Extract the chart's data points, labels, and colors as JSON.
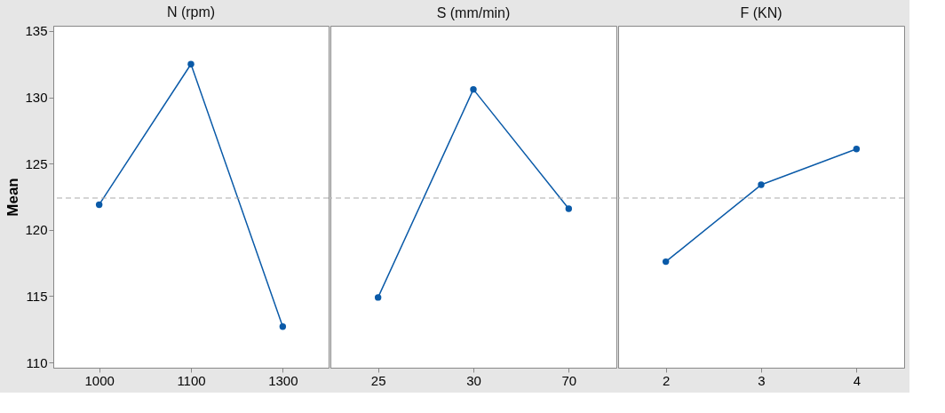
{
  "chart_data": [
    {
      "type": "line",
      "title": "N (rpm)",
      "ylabel": "Mean",
      "categories": [
        "1000",
        "1100",
        "1300"
      ],
      "series": [
        {
          "color": "#0a5aa8",
          "values": [
            121.9,
            132.5,
            112.7
          ]
        }
      ],
      "ylim": [
        109.6,
        135.4
      ],
      "yticks": [
        110,
        115,
        120,
        125,
        130,
        135
      ],
      "ref_lines": [
        {
          "axis": "y",
          "value": 122.4,
          "color": "#aaaaaa",
          "line_style": "dashed"
        }
      ],
      "marker": "circle",
      "line_style": "solid",
      "grid": false
    },
    {
      "type": "line",
      "title": "S (mm/min)",
      "categories": [
        "25",
        "30",
        "70"
      ],
      "series": [
        {
          "color": "#0a5aa8",
          "values": [
            114.9,
            130.6,
            121.6
          ]
        }
      ],
      "ylim": [
        109.6,
        135.4
      ],
      "yticks": [
        110,
        115,
        120,
        125,
        130,
        135
      ],
      "tick_labels": "x",
      "ref_lines": [
        {
          "axis": "y",
          "value": 122.4,
          "color": "#aaaaaa",
          "line_style": "dashed"
        }
      ],
      "marker": "circle",
      "line_style": "solid",
      "grid": false
    },
    {
      "type": "line",
      "title": "F (KN)",
      "categories": [
        "2",
        "3",
        "4"
      ],
      "series": [
        {
          "color": "#0a5aa8",
          "values": [
            117.6,
            123.4,
            126.1
          ]
        }
      ],
      "ylim": [
        109.6,
        135.4
      ],
      "yticks": [
        110,
        115,
        120,
        125,
        130,
        135
      ],
      "tick_labels": "x",
      "ref_lines": [
        {
          "axis": "y",
          "value": 122.4,
          "color": "#aaaaaa",
          "line_style": "dashed"
        }
      ],
      "marker": "circle",
      "line_style": "solid",
      "grid": false
    }
  ]
}
